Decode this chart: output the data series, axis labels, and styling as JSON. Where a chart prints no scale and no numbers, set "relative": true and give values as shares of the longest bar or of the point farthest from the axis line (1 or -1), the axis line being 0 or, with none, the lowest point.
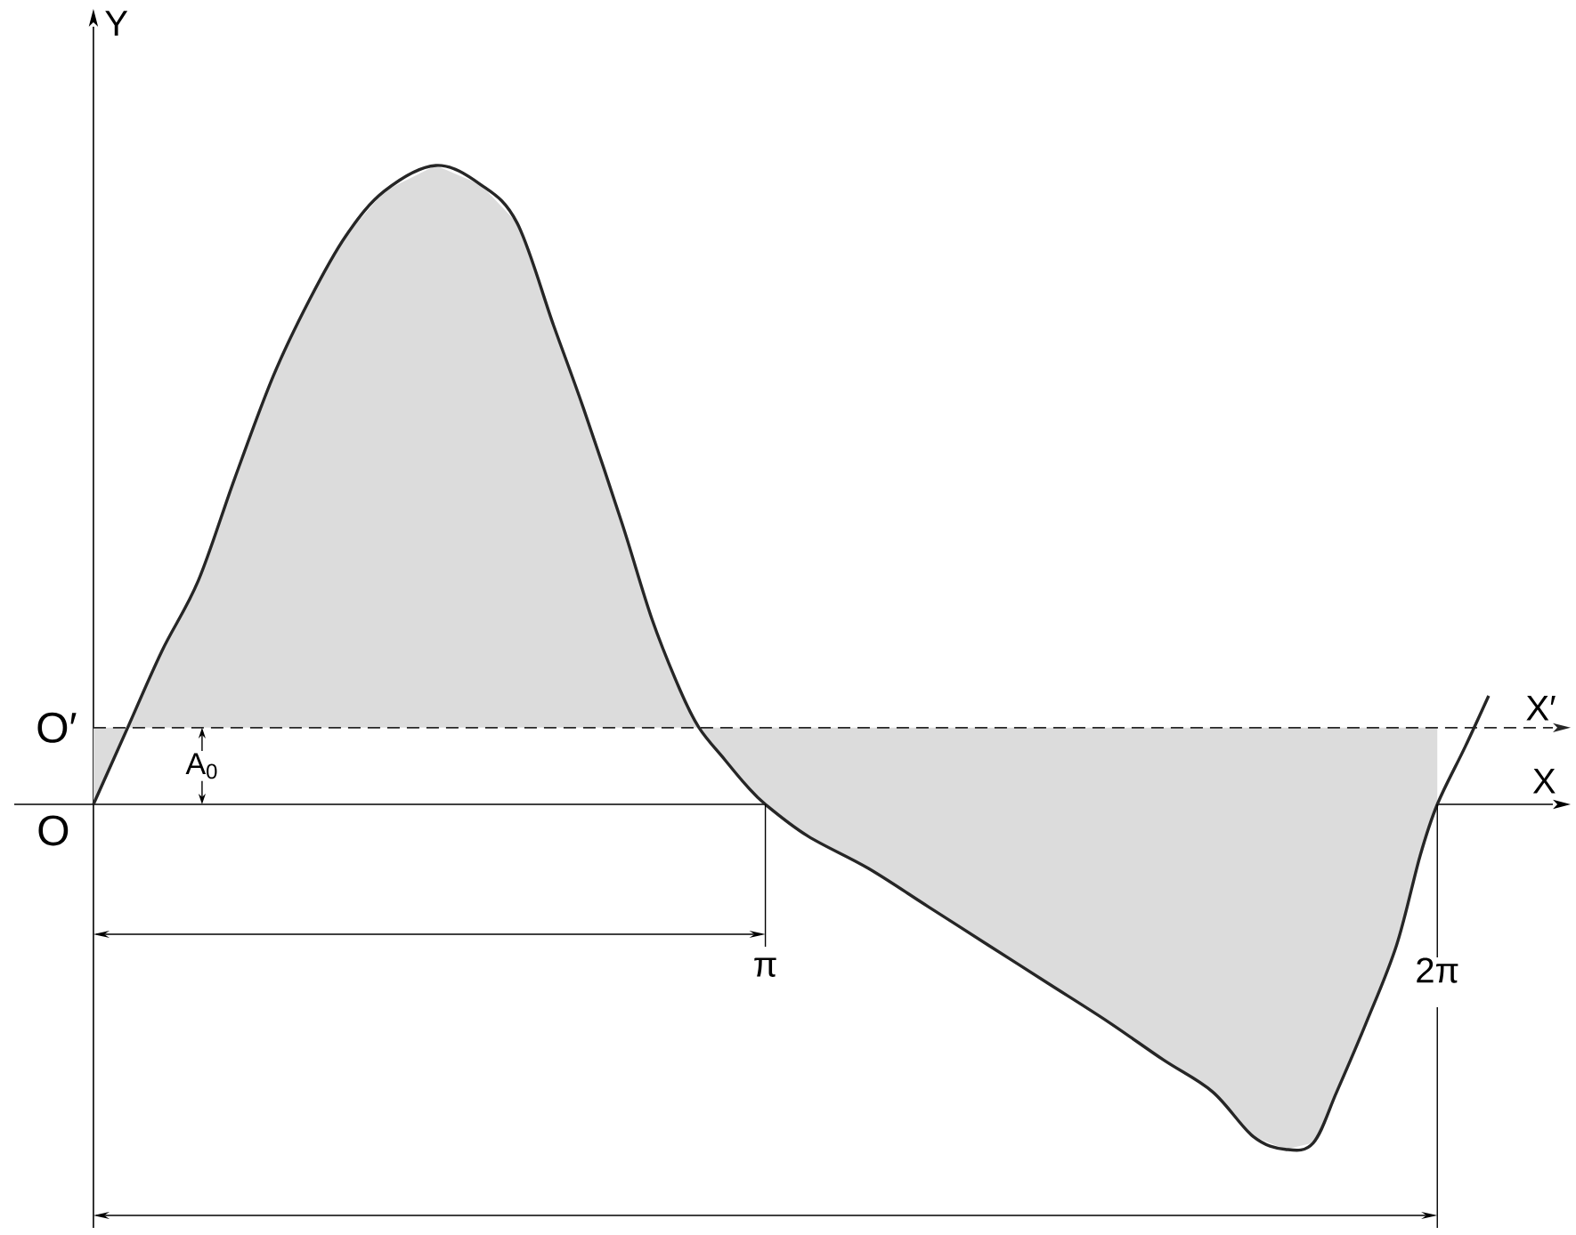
{
  "chart_data": {
    "type": "line",
    "relative": true,
    "xlabel": "X",
    "ylabel": "Y",
    "line_style": "solid",
    "x": [
      0,
      0.16,
      0.32,
      0.49,
      0.66,
      0.84,
      1.01,
      1.18,
      1.36,
      1.6,
      1.81,
      1.98,
      2.15,
      2.29,
      2.47,
      2.61,
      2.74,
      2.83,
      2.95,
      3.05,
      3.14,
      3.34,
      3.62,
      3.9,
      4.18,
      4.46,
      4.74,
      5.0,
      5.23,
      5.42,
      5.57,
      5.7,
      5.81,
      5.95,
      6.09,
      6.2,
      6.28,
      6.41,
      6.52
    ],
    "series": [
      {
        "color": "#262626",
        "values": [
          0,
          0.12,
          0.24,
          0.35,
          0.51,
          0.67,
          0.79,
          0.89,
          0.96,
          1.0,
          0.97,
          0.91,
          0.75,
          0.62,
          0.44,
          0.29,
          0.18,
          0.12,
          0.07,
          0.03,
          0,
          -0.05,
          -0.1,
          -0.16,
          -0.22,
          -0.28,
          -0.34,
          -0.4,
          -0.45,
          -0.52,
          -0.54,
          -0.53,
          -0.45,
          -0.34,
          -0.22,
          -0.08,
          0,
          0.09,
          0.17
        ],
        "upper": [
          0.12,
          0.12,
          0.24,
          0.35,
          0.51,
          0.67,
          0.79,
          0.89,
          0.96,
          1.0,
          0.97,
          0.91,
          0.75,
          0.62,
          0.44,
          0.29,
          0.18,
          0.12,
          0.12,
          0.12,
          0.12,
          0.12,
          0.12,
          0.12,
          0.12,
          0.12,
          0.12,
          0.12,
          0.12,
          0.12,
          0.12,
          0.12,
          0.12,
          0.12,
          0.12,
          0.12,
          0.12,
          null,
          null
        ],
        "lower": [
          0,
          0.12,
          0.12,
          0.12,
          0.12,
          0.12,
          0.12,
          0.12,
          0.12,
          0.12,
          0.12,
          0.12,
          0.12,
          0.12,
          0.12,
          0.12,
          0.12,
          0.12,
          0.07,
          0.03,
          0,
          -0.05,
          -0.1,
          -0.16,
          -0.22,
          -0.28,
          -0.34,
          -0.4,
          -0.45,
          -0.52,
          -0.54,
          -0.53,
          -0.45,
          -0.34,
          -0.22,
          -0.08,
          0,
          null,
          null
        ]
      }
    ],
    "xlim": [
      -0.37,
      6.82
    ],
    "xticks": [
      {
        "value": 3.14,
        "label": "π"
      },
      {
        "value": 6.28,
        "label": "2π"
      }
    ],
    "ref_lines": [
      {
        "axis": "y",
        "value": 0.12,
        "label": "X′",
        "line_style": "dashed",
        "color": "#262626"
      },
      {
        "axis": "x",
        "value": 3.14
      },
      {
        "axis": "x",
        "value": 6.28
      }
    ],
    "annotations": [
      "O",
      "O′",
      "A$_{0}$"
    ]
  }
}
